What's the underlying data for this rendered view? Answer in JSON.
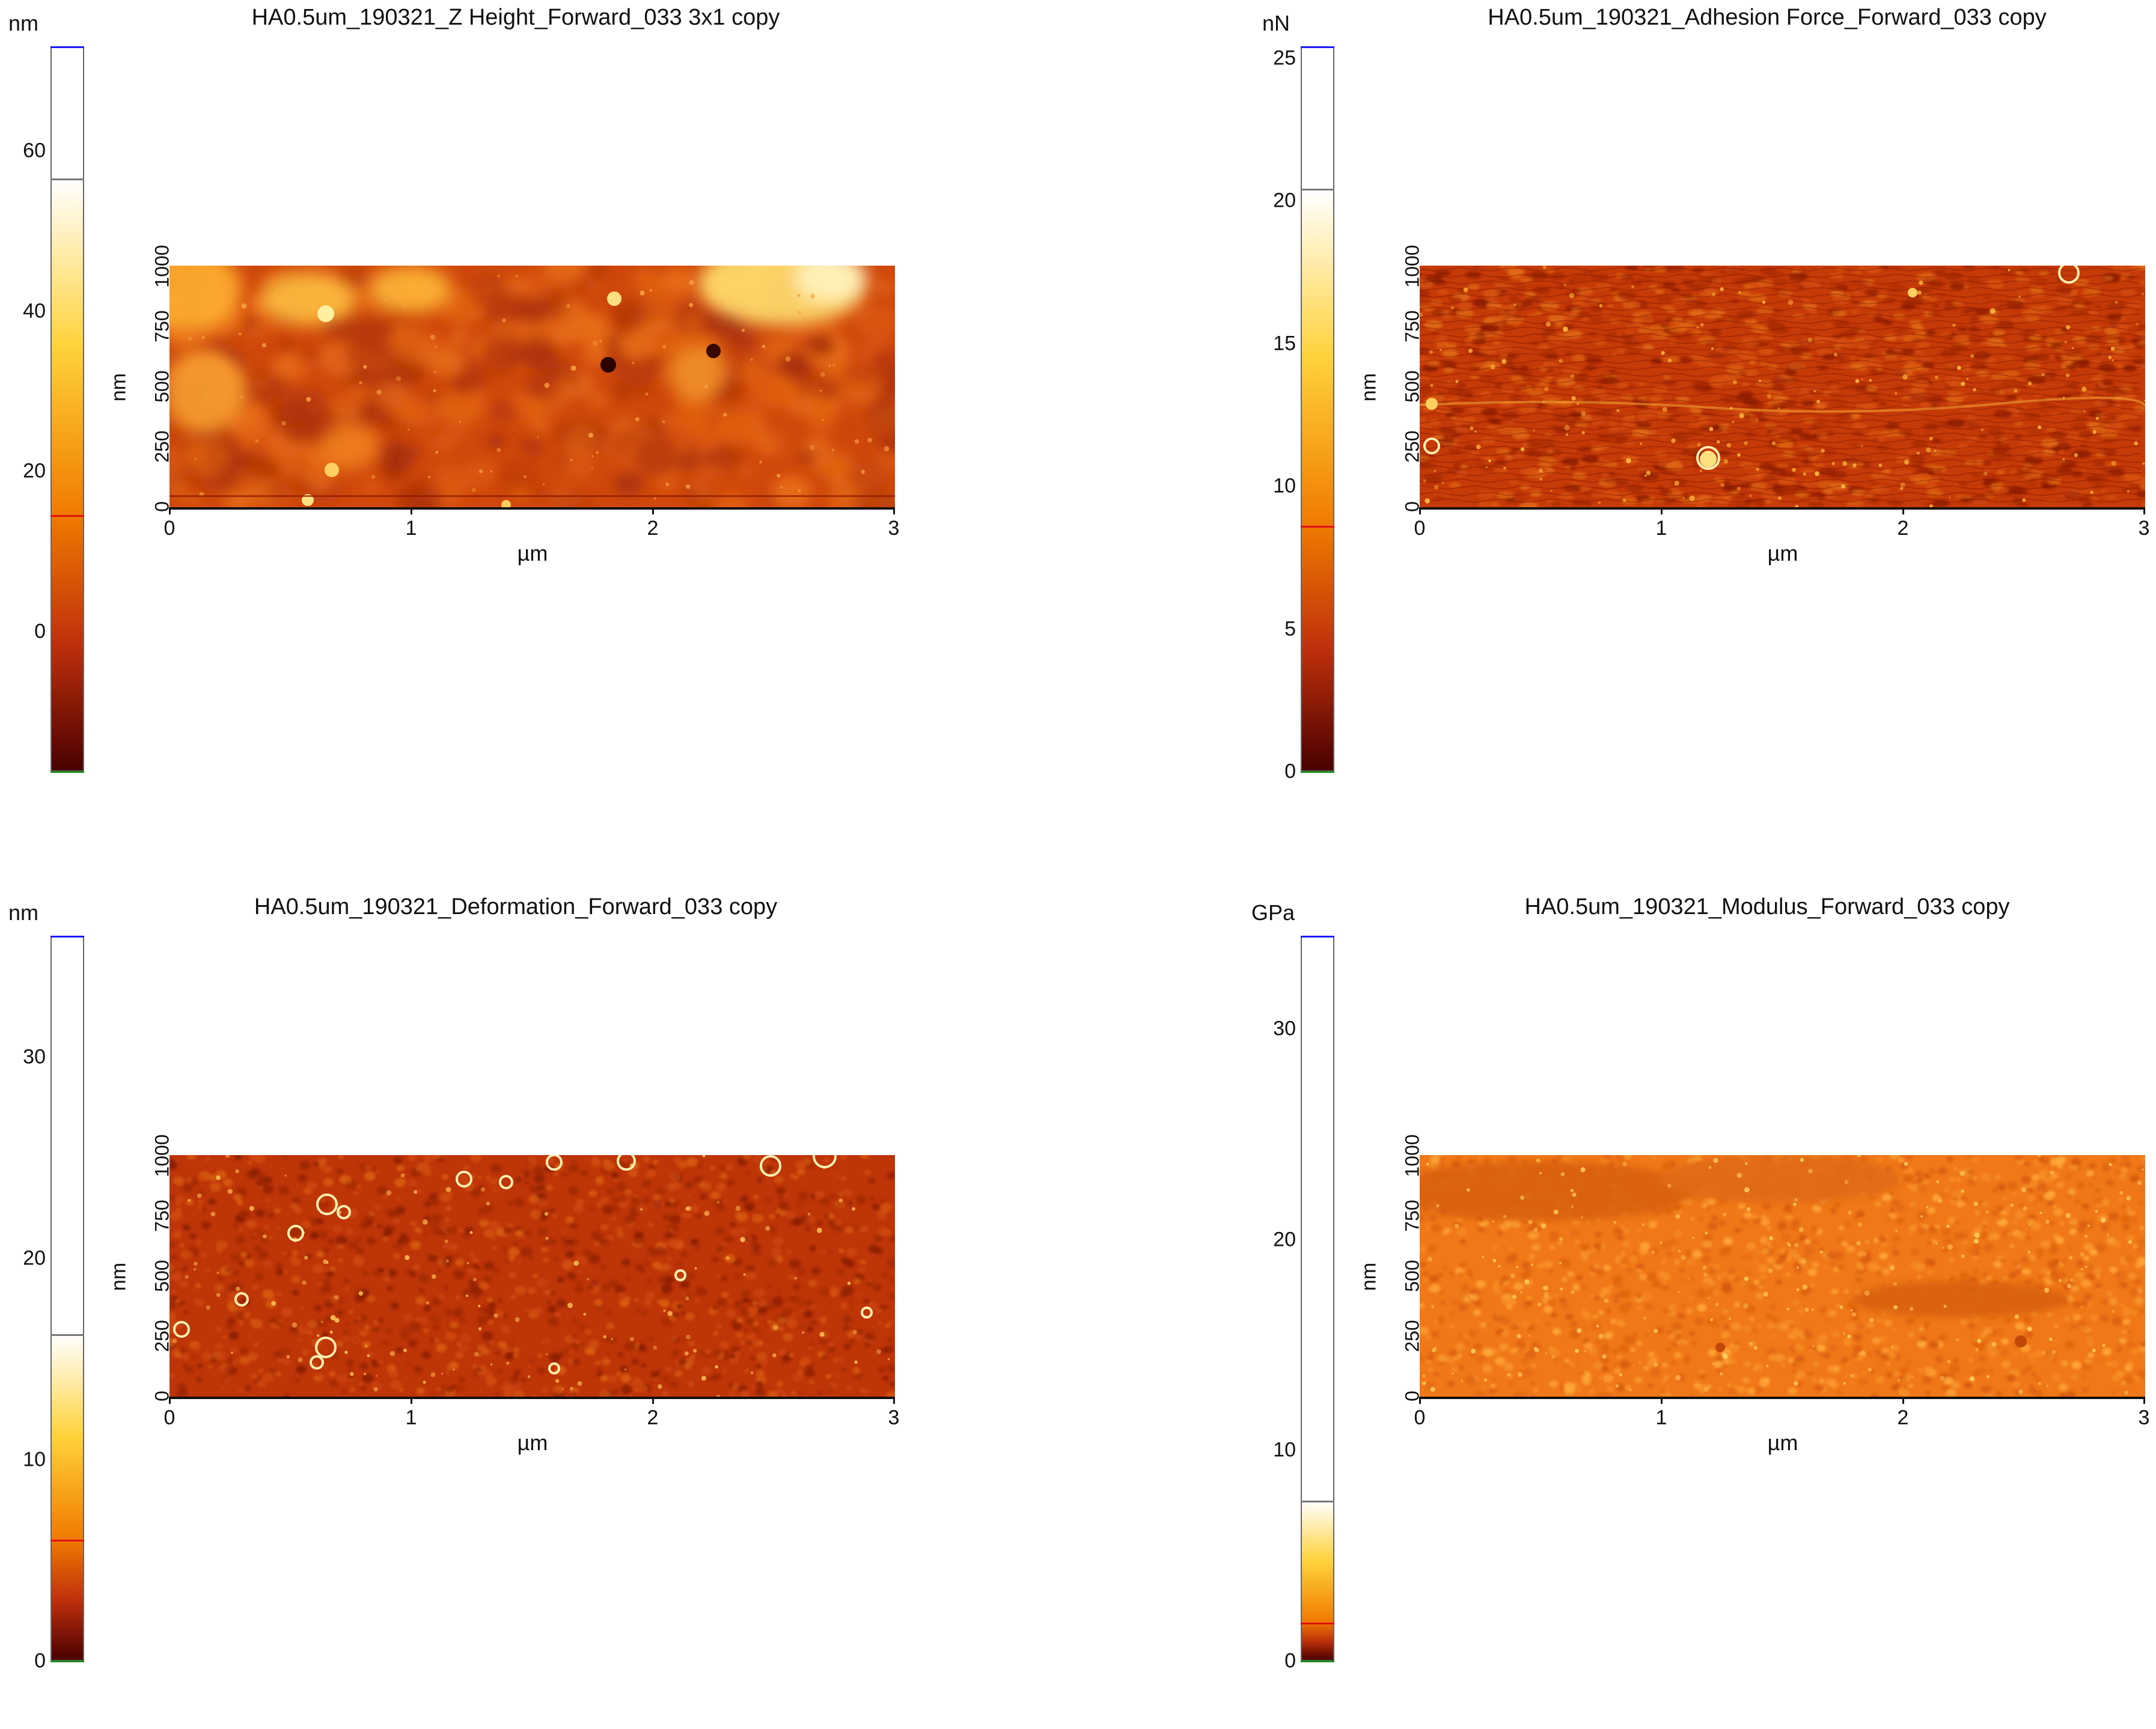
{
  "panels": [
    {
      "id": "height",
      "title": "HA0.5um_190321_Z Height_Forward_033 3x1 copy",
      "unit": "nm",
      "colorbar_ticks": [
        "60",
        "40",
        "20",
        "0"
      ],
      "colorbar_tick_values": [
        60,
        40,
        20,
        0
      ],
      "colorbar_range": [
        -17.5,
        73
      ],
      "colorbar_markers": {
        "blue": 73,
        "white": 56.5,
        "red": 14.5,
        "green": -17.5
      },
      "colors": [
        "#4a0000",
        "#c0300c",
        "#f07a00",
        "#ffd23a",
        "#ffffff"
      ],
      "x_axis": {
        "label": "µm",
        "ticks": [
          "0",
          "1",
          "2",
          "3"
        ]
      },
      "y_axis": {
        "label": "nm",
        "ticks": [
          "0",
          "250",
          "500",
          "750",
          "1000"
        ]
      }
    },
    {
      "id": "adhesion",
      "title": "HA0.5um_190321_Adhesion Force_Forward_033 copy",
      "unit": "nN",
      "colorbar_ticks": [
        "25",
        "20",
        "15",
        "10",
        "5",
        "0"
      ],
      "colorbar_tick_values": [
        25,
        20,
        15,
        10,
        5,
        0
      ],
      "colorbar_range": [
        0,
        25.4
      ],
      "colorbar_markers": {
        "blue": 25.4,
        "white": 20.4,
        "red": 8.6,
        "green": 0
      },
      "colors": [
        "#4a0000",
        "#c0300c",
        "#f07a00",
        "#ffd23a",
        "#ffffff"
      ],
      "x_axis": {
        "label": "µm",
        "ticks": [
          "0",
          "1",
          "2",
          "3"
        ]
      },
      "y_axis": {
        "label": "nm",
        "ticks": [
          "0",
          "250",
          "500",
          "750",
          "1000"
        ]
      }
    },
    {
      "id": "deformation",
      "title": "HA0.5um_190321_Deformation_Forward_033 copy",
      "unit": "nm",
      "colorbar_ticks": [
        "30",
        "20",
        "10",
        "0"
      ],
      "colorbar_tick_values": [
        30,
        20,
        10,
        0
      ],
      "colorbar_range": [
        0,
        36
      ],
      "colorbar_markers": {
        "blue": 36,
        "white": 16.2,
        "red": 6,
        "green": 0
      },
      "colors": [
        "#4a0000",
        "#c0300c",
        "#f07a00",
        "#ffd23a",
        "#ffffff"
      ],
      "x_axis": {
        "label": "µm",
        "ticks": [
          "0",
          "1",
          "2",
          "3"
        ]
      },
      "y_axis": {
        "label": "nm",
        "ticks": [
          "0",
          "250",
          "500",
          "750",
          "1000"
        ]
      }
    },
    {
      "id": "modulus",
      "title": "HA0.5um_190321_Modulus_Forward_033 copy",
      "unit": "GPa",
      "colorbar_ticks": [
        "30",
        "20",
        "10",
        "0"
      ],
      "colorbar_tick_values": [
        30,
        20,
        10,
        0
      ],
      "colorbar_range": [
        0,
        34.4
      ],
      "colorbar_markers": {
        "blue": 34.4,
        "white": 7.6,
        "red": 1.8,
        "green": 0
      },
      "colors": [
        "#4a0000",
        "#c0300c",
        "#f07a00",
        "#ffd23a",
        "#ffffff"
      ],
      "x_axis": {
        "label": "µm",
        "ticks": [
          "0",
          "1",
          "2",
          "3"
        ]
      },
      "y_axis": {
        "label": "nm",
        "ticks": [
          "0",
          "250",
          "500",
          "750",
          "1000"
        ]
      }
    }
  ]
}
